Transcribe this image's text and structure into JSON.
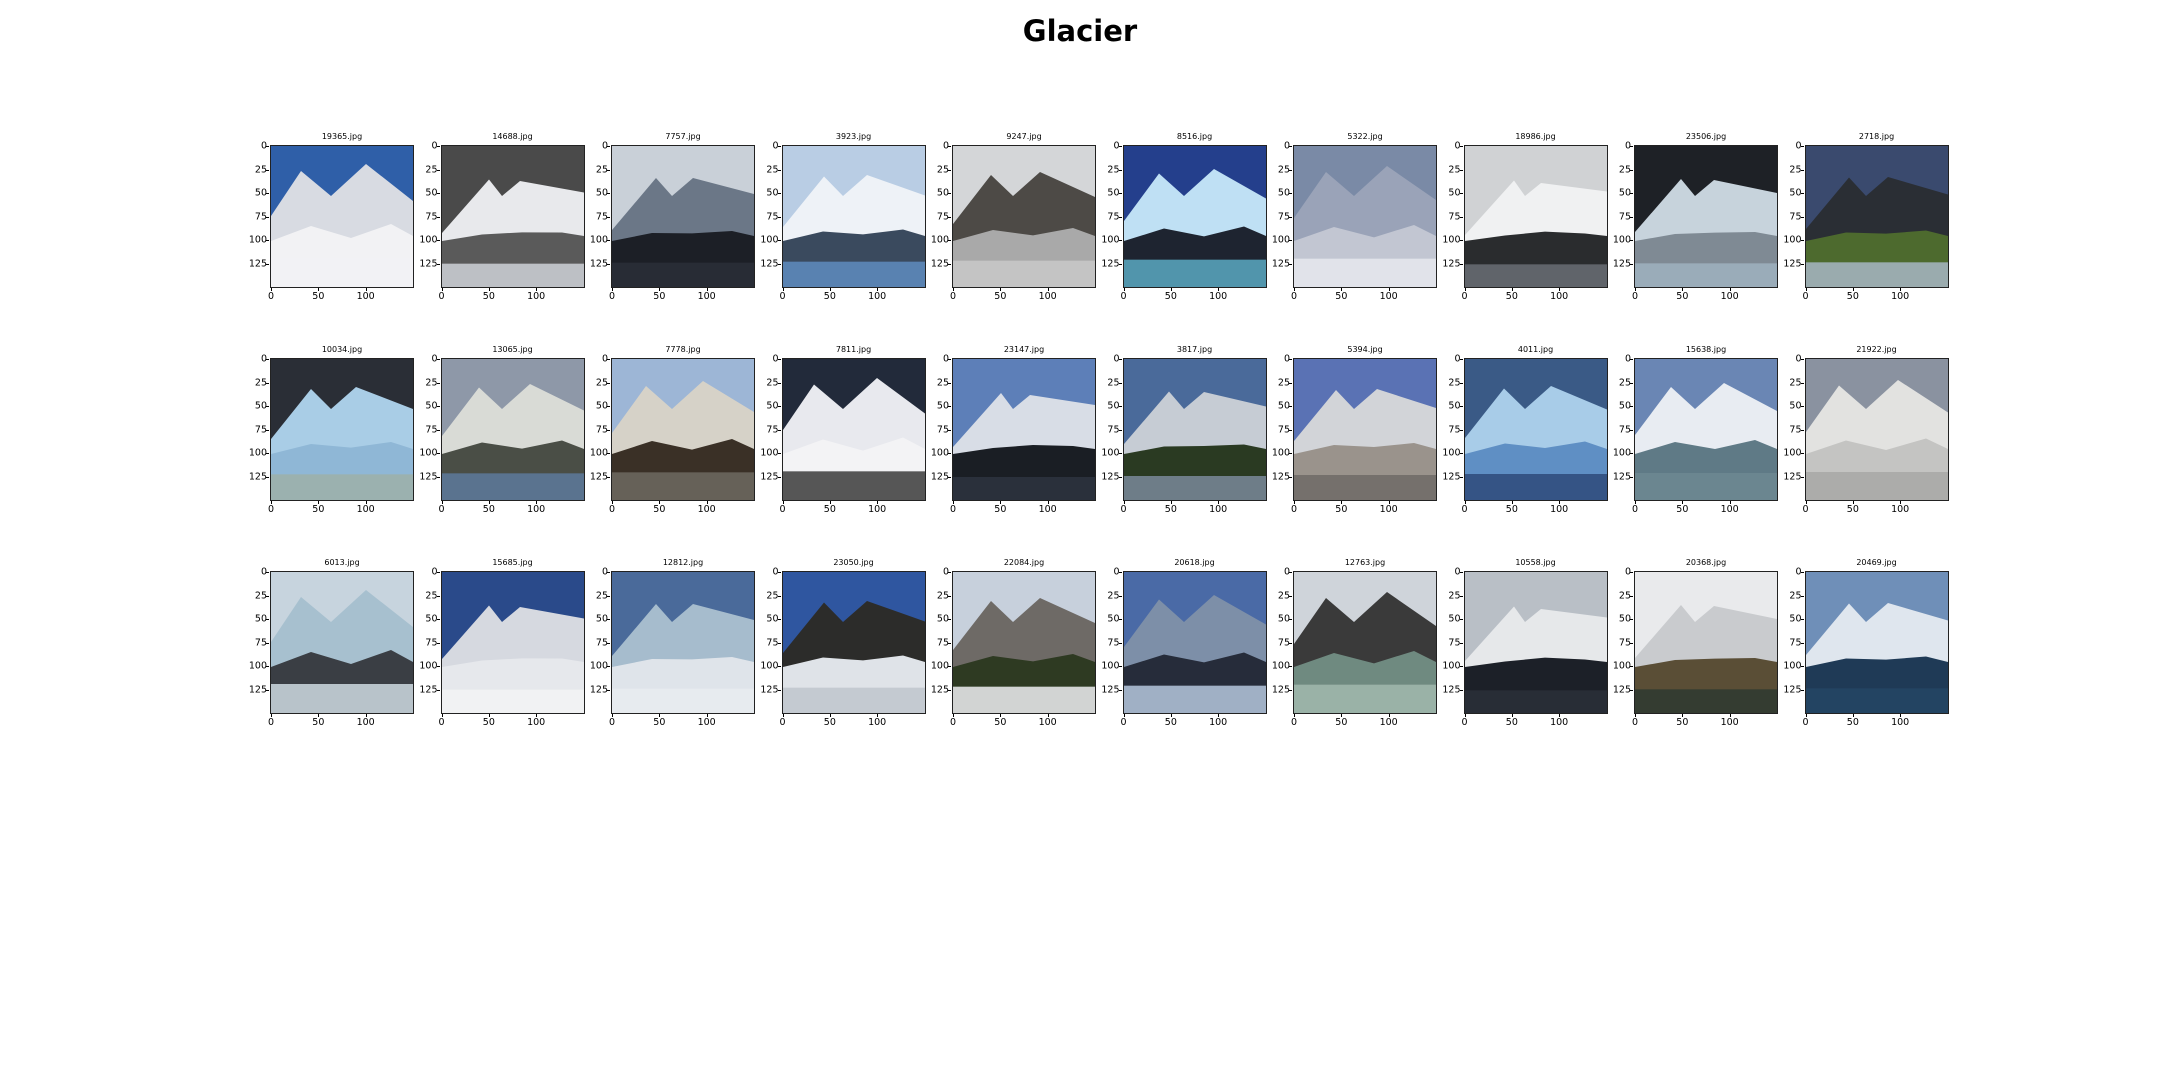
{
  "figure": {
    "title": "Glacier"
  },
  "chart_data": {
    "type": "image-grid",
    "title": "Glacier",
    "rows": 3,
    "cols": 10,
    "xticks": [
      "0",
      "50",
      "100"
    ],
    "yticks": [
      "0",
      "25",
      "50",
      "75",
      "100",
      "125"
    ],
    "xlim": [
      0,
      150
    ],
    "ylim": [
      150,
      0
    ],
    "panels": [
      {
        "title": "19365.jpg",
        "sky": "#2f5fa8",
        "ground": "#f2f2f4",
        "rock": "#d8dbe2",
        "water": "#f2f2f4"
      },
      {
        "title": "14688.jpg",
        "sky": "#4a4a4a",
        "ground": "#5a5a5a",
        "rock": "#e8e9ec",
        "water": "#cfd2d8"
      },
      {
        "title": "7757.jpg",
        "sky": "#c9d0d8",
        "ground": "#1c1f26",
        "rock": "#6b7787",
        "water": "#2a2f38"
      },
      {
        "title": "3923.jpg",
        "sky": "#b9cde4",
        "ground": "#3a4a5e",
        "rock": "#eef2f7",
        "water": "#5f8cc0"
      },
      {
        "title": "9247.jpg",
        "sky": "#d4d6d8",
        "ground": "#a9a9a9",
        "rock": "#4d4a46",
        "water": "#c9c9c9"
      },
      {
        "title": "8516.jpg",
        "sky": "#243f8c",
        "ground": "#1e2430",
        "rock": "#bfe0f4",
        "water": "#5aa9c2"
      },
      {
        "title": "5322.jpg",
        "sky": "#7a8aa6",
        "ground": "#c2c6d2",
        "rock": "#9aa3b8",
        "water": "#e6e8ee"
      },
      {
        "title": "18986.jpg",
        "sky": "#d0d2d4",
        "ground": "#2a2c2e",
        "rock": "#f0f1f2",
        "water": "#6a6f74"
      },
      {
        "title": "23506.jpg",
        "sky": "#1e2126",
        "ground": "#7f8a94",
        "rock": "#c7d3dc",
        "water": "#9fb2c0"
      },
      {
        "title": "2718.jpg",
        "sky": "#3a4a6e",
        "ground": "#4d6a2e",
        "rock": "#2a2e34",
        "water": "#a8b6c4"
      },
      {
        "title": "10034.jpg",
        "sky": "#2a2e36",
        "ground": "#8fb7d6",
        "rock": "#a9cde6",
        "water": "#9eb0a8"
      },
      {
        "title": "13065.jpg",
        "sky": "#8e98a8",
        "ground": "#4a4e46",
        "rock": "#d9dbd6",
        "water": "#5d7a9c"
      },
      {
        "title": "7778.jpg",
        "sky": "#9db6d6",
        "ground": "#3a3026",
        "rock": "#d6d2c8",
        "water": "#6e6a62"
      },
      {
        "title": "7811.jpg",
        "sky": "#222a3a",
        "ground": "#f3f3f5",
        "rock": "#e8e9ee",
        "water": "#3a3a3a"
      },
      {
        "title": "23147.jpg",
        "sky": "#5d7fb8",
        "ground": "#1a1e24",
        "rock": "#d8dde6",
        "water": "#2e3440"
      },
      {
        "title": "3817.jpg",
        "sky": "#4a6a9a",
        "ground": "#2a3a22",
        "rock": "#c6ccd4",
        "water": "#7a8a9a"
      },
      {
        "title": "5394.jpg",
        "sky": "#5a72b4",
        "ground": "#9a938c",
        "rock": "#d2d4d8",
        "water": "#6f6a66"
      },
      {
        "title": "4011.jpg",
        "sky": "#3a5a86",
        "ground": "#5f8fc4",
        "rock": "#a8cce8",
        "water": "#2e4a7a"
      },
      {
        "title": "15638.jpg",
        "sky": "#6a86b4",
        "ground": "#5f7a86",
        "rock": "#e8ecf2",
        "water": "#6d8892"
      },
      {
        "title": "21922.jpg",
        "sky": "#8a92a0",
        "ground": "#c4c4c2",
        "rock": "#e2e2e0",
        "water": "#a8a8a6"
      },
      {
        "title": "6013.jpg",
        "sky": "#c7d4de",
        "ground": "#3a3e44",
        "rock": "#a7c0cf",
        "water": "#cfdbe2"
      },
      {
        "title": "15685.jpg",
        "sky": "#2a4a8a",
        "ground": "#e6e8ec",
        "rock": "#d6d9e0",
        "water": "#f2f3f5"
      },
      {
        "title": "12812.jpg",
        "sky": "#4a6a9a",
        "ground": "#dfe4ea",
        "rock": "#a6bccd",
        "water": "#e9ecf0"
      },
      {
        "title": "23050.jpg",
        "sky": "#2f56a0",
        "ground": "#dfe3e8",
        "rock": "#2c2c2a",
        "water": "#bfc5cc"
      },
      {
        "title": "22084.jpg",
        "sky": "#c7d0dc",
        "ground": "#2e3a22",
        "rock": "#6e6a66",
        "water": "#eef0f2"
      },
      {
        "title": "20618.jpg",
        "sky": "#4a6aa6",
        "ground": "#262c3a",
        "rock": "#7d8fa8",
        "water": "#b6c8de"
      },
      {
        "title": "12763.jpg",
        "sky": "#cfd4da",
        "ground": "#6f8a80",
        "rock": "#3a3a3a",
        "water": "#a2b8ae"
      },
      {
        "title": "10558.jpg",
        "sky": "#b9bfc6",
        "ground": "#1c2028",
        "rock": "#e6e8ea",
        "water": "#2a3038"
      },
      {
        "title": "20368.jpg",
        "sky": "#e9eaec",
        "ground": "#5a4e36",
        "rock": "#c9cbce",
        "water": "#2e3a30"
      },
      {
        "title": "20469.jpg",
        "sky": "#6f8fb8",
        "ground": "#1f3a56",
        "rock": "#dfe6ee",
        "water": "#244664"
      }
    ]
  }
}
